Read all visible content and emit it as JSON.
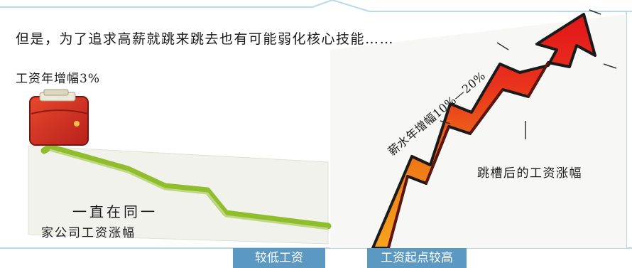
{
  "headline": "但是，为了追求高薪就跳来跳去也有可能弱化核心技能……",
  "left_panel": {
    "annual_raise_label": "工资年增幅3%",
    "caption_line1": "一直在同一",
    "caption_line2": "家公司工资涨幅",
    "tag": "较低工资"
  },
  "right_panel": {
    "annual_raise_label": "薪水年增幅10%—20%",
    "caption": "跳槽后的工资涨幅",
    "tag": "工资起点较高"
  },
  "colors": {
    "frame_blue": "#a9cfe6",
    "tag_blue": "#5b98c2",
    "flat_line_green": "#9cc83a",
    "arrow_red": "#e8221c",
    "arrow_orange": "#f28a1c",
    "wallet_red": "#d42a22"
  },
  "icons": {
    "wallet": "wallet-icon",
    "arrow": "rising-arrow-icon"
  }
}
